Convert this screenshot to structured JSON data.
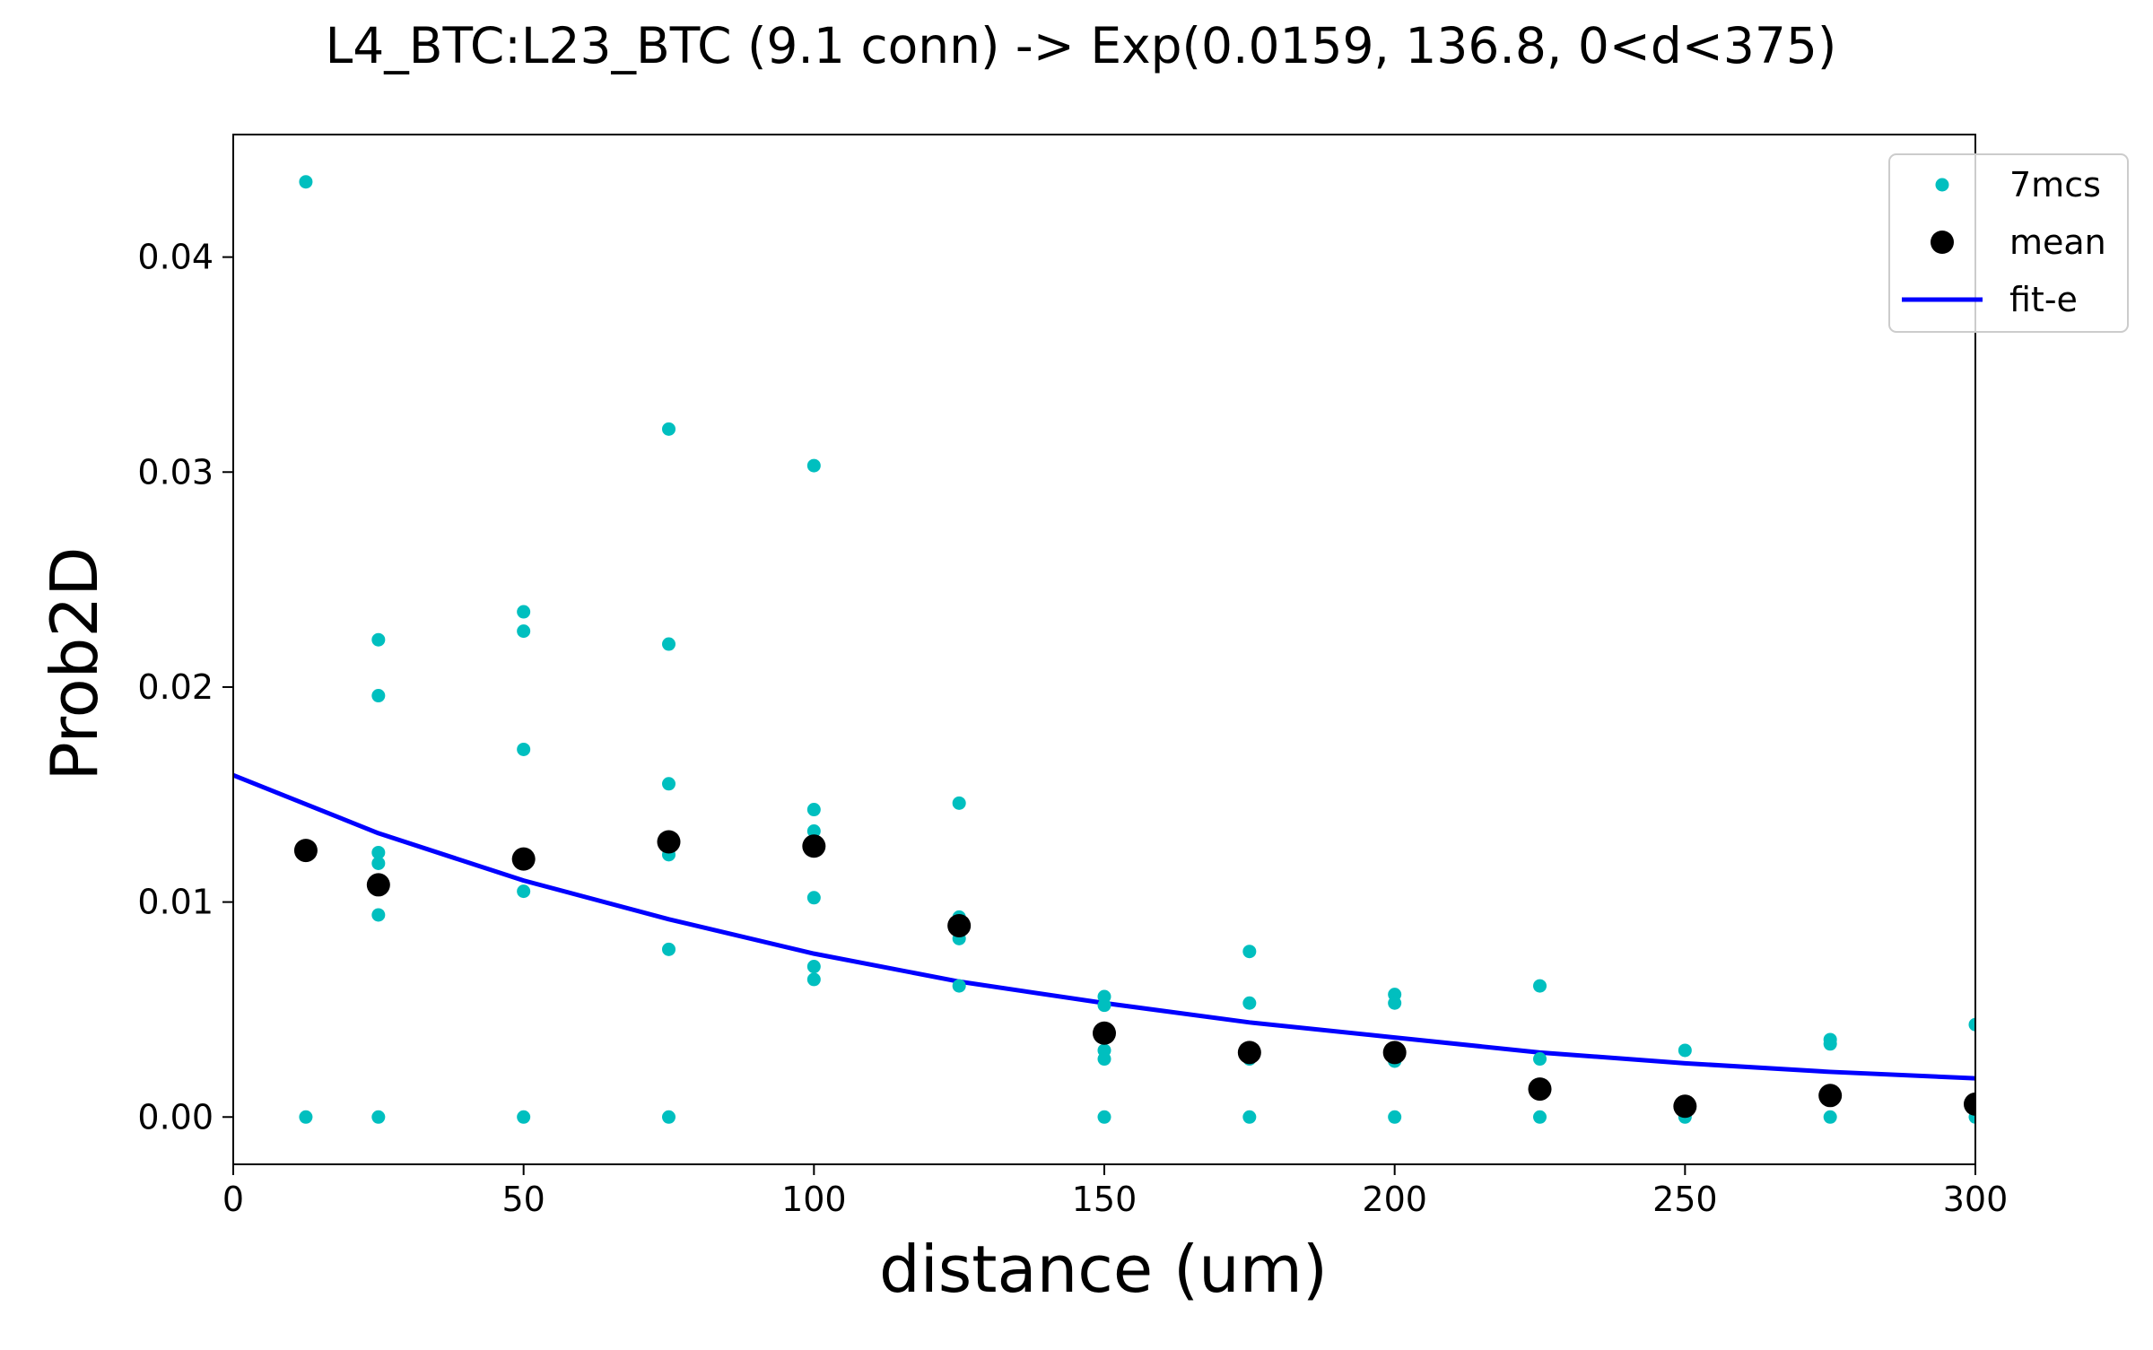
{
  "chart_data": {
    "type": "scatter",
    "title": "L4_BTC:L23_BTC (9.1 conn) -> Exp(0.0159, 136.8, 0<d<375)",
    "xlabel": "distance (um)",
    "ylabel": "Prob2D",
    "xlim": [
      0,
      300
    ],
    "ylim": [
      -0.0022,
      0.0457
    ],
    "xticks": [
      0,
      50,
      100,
      150,
      200,
      250,
      300
    ],
    "xtick_labels": [
      "0",
      "50",
      "100",
      "150",
      "200",
      "250",
      "300"
    ],
    "yticks": [
      0.0,
      0.01,
      0.02,
      0.03,
      0.04
    ],
    "ytick_labels": [
      "0.00",
      "0.01",
      "0.02",
      "0.03",
      "0.04"
    ],
    "grid": false,
    "legend_position": "top-right",
    "series": [
      {
        "name": "7mcs",
        "kind": "points",
        "color": "#00bfbf",
        "points": [
          [
            12.5,
            0.0435
          ],
          [
            12.5,
            0.0
          ],
          [
            25,
            0.0222
          ],
          [
            25,
            0.0196
          ],
          [
            25,
            0.0123
          ],
          [
            25,
            0.0118
          ],
          [
            25,
            0.0094
          ],
          [
            25,
            0.0
          ],
          [
            50,
            0.0235
          ],
          [
            50,
            0.0226
          ],
          [
            50,
            0.0171
          ],
          [
            50,
            0.0105
          ],
          [
            50,
            0.0
          ],
          [
            75,
            0.032
          ],
          [
            75,
            0.022
          ],
          [
            75,
            0.0155
          ],
          [
            75,
            0.0122
          ],
          [
            75,
            0.0078
          ],
          [
            75,
            0.0
          ],
          [
            100,
            0.0303
          ],
          [
            100,
            0.0143
          ],
          [
            100,
            0.0133
          ],
          [
            100,
            0.0102
          ],
          [
            100,
            0.007
          ],
          [
            100,
            0.0064
          ],
          [
            125,
            0.0146
          ],
          [
            125,
            0.0093
          ],
          [
            125,
            0.0083
          ],
          [
            125,
            0.0061
          ],
          [
            150,
            0.0056
          ],
          [
            150,
            0.0052
          ],
          [
            150,
            0.0031
          ],
          [
            150,
            0.0027
          ],
          [
            150,
            0.0
          ],
          [
            175,
            0.0077
          ],
          [
            175,
            0.0053
          ],
          [
            175,
            0.0027
          ],
          [
            175,
            0.0
          ],
          [
            200,
            0.0057
          ],
          [
            200,
            0.0053
          ],
          [
            200,
            0.0026
          ],
          [
            200,
            0.0
          ],
          [
            225,
            0.0061
          ],
          [
            225,
            0.0027
          ],
          [
            225,
            0.0
          ],
          [
            250,
            0.0031
          ],
          [
            250,
            0.0
          ],
          [
            275,
            0.0036
          ],
          [
            275,
            0.0034
          ],
          [
            275,
            0.0
          ],
          [
            300,
            0.0043
          ],
          [
            300,
            0.0
          ]
        ]
      },
      {
        "name": "mean",
        "kind": "points",
        "color": "#000000",
        "points": [
          [
            12.5,
            0.0124
          ],
          [
            25,
            0.0108
          ],
          [
            50,
            0.012
          ],
          [
            75,
            0.0128
          ],
          [
            100,
            0.0126
          ],
          [
            125,
            0.0089
          ],
          [
            150,
            0.0039
          ],
          [
            175,
            0.003
          ],
          [
            200,
            0.003
          ],
          [
            225,
            0.0013
          ],
          [
            250,
            0.0005
          ],
          [
            275,
            0.001
          ],
          [
            300,
            0.0006
          ]
        ]
      },
      {
        "name": "fit-e",
        "kind": "line",
        "color": "#0000ff",
        "x": [
          0,
          25,
          50,
          75,
          100,
          125,
          150,
          175,
          200,
          225,
          250,
          275,
          300
        ],
        "values": [
          0.0159,
          0.0132,
          0.011,
          0.0092,
          0.0076,
          0.0063,
          0.0053,
          0.0044,
          0.0037,
          0.003,
          0.0025,
          0.0021,
          0.0018
        ]
      }
    ]
  }
}
